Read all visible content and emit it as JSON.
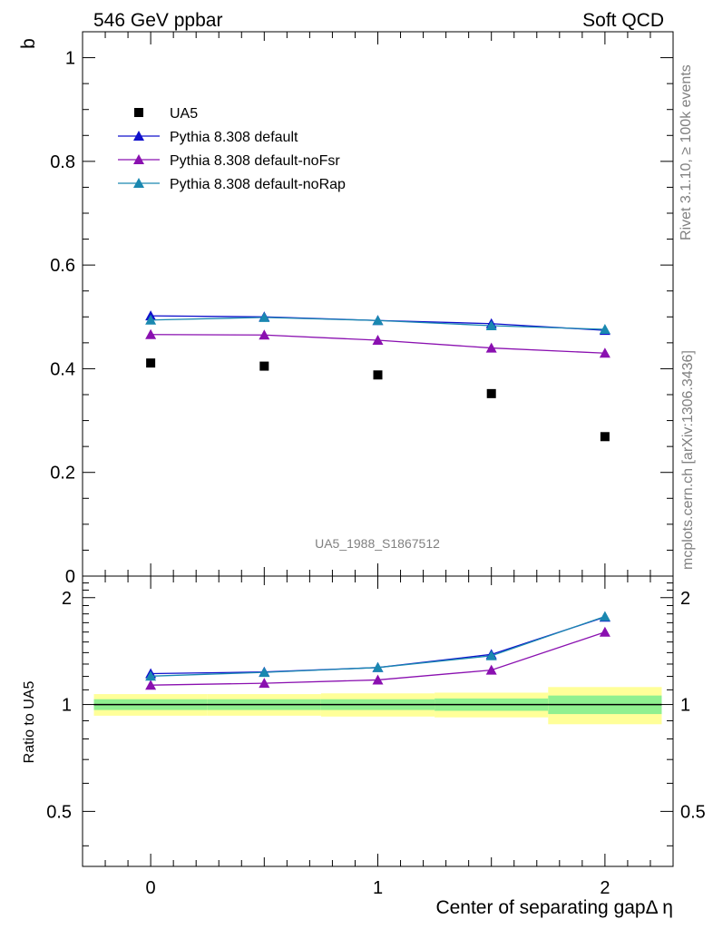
{
  "header": {
    "left": "546 GeV ppbar",
    "right": "Soft QCD"
  },
  "side_labels": {
    "rivet": "Rivet 3.1.10, ≥ 100k events",
    "mcplots": "mcplots.cern.ch [arXiv:1306.3436]"
  },
  "watermark": "UA5_1988_S1867512",
  "colors": {
    "ua5": "#000000",
    "default": "#1010cc",
    "noFsr": "#8a10b0",
    "noRap": "#1a88b0",
    "band_inner": "#90f090",
    "band_outer": "#ffff99"
  },
  "chart_data": [
    {
      "type": "scatter",
      "panel": "main",
      "ylabel": "b",
      "xlim": [
        -0.3,
        2.3
      ],
      "ylim": [
        0,
        1.05
      ],
      "y_ticks": [
        "0",
        "0.2",
        "0.4",
        "0.6",
        "0.8",
        "1"
      ],
      "y_tick_values": [
        0,
        0.2,
        0.4,
        0.6,
        0.8,
        1.0
      ],
      "legend_position": "top-left",
      "x": [
        0,
        0.5,
        1,
        1.5,
        2
      ],
      "series": [
        {
          "name": "UA5",
          "marker": "square",
          "values": [
            0.411,
            0.405,
            0.388,
            0.352,
            0.269
          ]
        },
        {
          "name": "Pythia 8.308 default",
          "marker": "triangle",
          "values": [
            0.502,
            0.5,
            0.493,
            0.487,
            0.474
          ]
        },
        {
          "name": "Pythia 8.308 default-noFsr",
          "marker": "triangle",
          "values": [
            0.466,
            0.465,
            0.455,
            0.44,
            0.43
          ]
        },
        {
          "name": "Pythia 8.308 default-noRap",
          "marker": "triangle",
          "values": [
            0.494,
            0.499,
            0.493,
            0.483,
            0.476
          ]
        }
      ]
    },
    {
      "type": "line",
      "panel": "ratio",
      "ylabel": "Ratio to UA5",
      "xlabel": "Center of separating gapΔ η",
      "xlim": [
        -0.3,
        2.3
      ],
      "ylim": [
        0.35,
        2.3
      ],
      "y_ticks": [
        "0.5",
        "1",
        "2"
      ],
      "y_tick_values": [
        0.5,
        1.0,
        2.0
      ],
      "x_ticks": [
        "0",
        "1",
        "2"
      ],
      "x_tick_values": [
        0,
        1,
        2
      ],
      "x": [
        0,
        0.5,
        1,
        1.5,
        2
      ],
      "bins": [
        [
          -0.25,
          0.25
        ],
        [
          0.25,
          0.75
        ],
        [
          0.75,
          1.25
        ],
        [
          1.25,
          1.75
        ],
        [
          1.75,
          2.25
        ]
      ],
      "band_inner": [
        0.035,
        0.035,
        0.035,
        0.04,
        0.06
      ],
      "band_outer": [
        0.07,
        0.07,
        0.075,
        0.08,
        0.12
      ],
      "series": [
        {
          "name": "Pythia 8.308 default",
          "values": [
            1.222,
            1.235,
            1.271,
            1.384,
            1.763
          ]
        },
        {
          "name": "Pythia 8.308 default-noFsr",
          "values": [
            1.134,
            1.148,
            1.173,
            1.25,
            1.599
          ]
        },
        {
          "name": "Pythia 8.308 default-noRap",
          "values": [
            1.202,
            1.232,
            1.271,
            1.372,
            1.77
          ]
        }
      ]
    }
  ]
}
